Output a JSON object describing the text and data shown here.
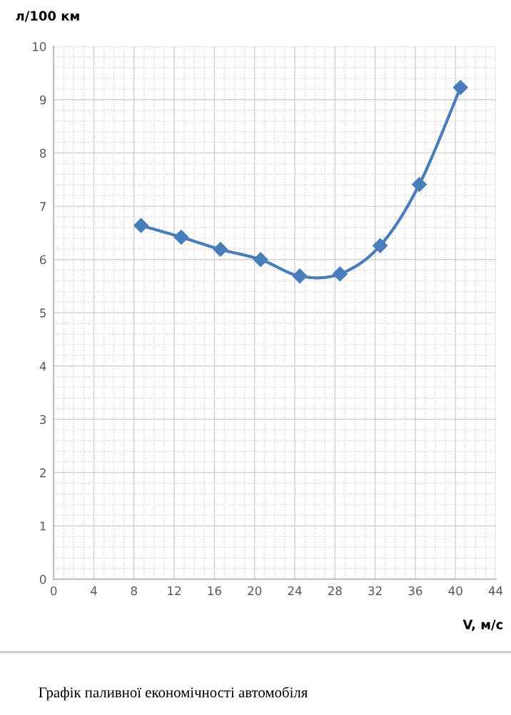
{
  "chart_data": {
    "type": "line",
    "xlabel": "V, м/с",
    "ylabel": "л/100 км",
    "annotations": [
      "Графік паливної економічності автомобіля"
    ],
    "x": [
      8.7,
      12.7,
      16.6,
      20.6,
      24.5,
      28.5,
      32.5,
      36.4,
      40.5
    ],
    "series": [
      {
        "color": "#4a7ebb",
        "values": [
          6.64,
          6.42,
          6.19,
          6.0,
          5.69,
          5.73,
          6.26,
          7.41,
          9.23
        ]
      }
    ],
    "xlim": [
      0,
      44
    ],
    "ylim": [
      0,
      10
    ],
    "xticks": [
      0,
      4,
      8,
      12,
      16,
      20,
      24,
      28,
      32,
      36,
      40,
      44
    ],
    "yticks": [
      0,
      1,
      2,
      3,
      4,
      5,
      6,
      7,
      8,
      9,
      10
    ],
    "grid": true,
    "marker": "diamond",
    "line_style": "solid"
  }
}
